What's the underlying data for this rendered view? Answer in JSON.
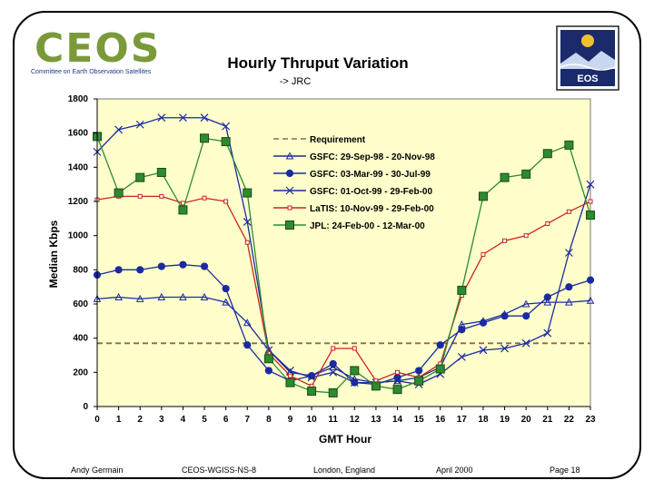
{
  "header": {
    "logo_text": "CEOS",
    "logo_subtitle": "Committee on Earth Observation Satellites",
    "title": "Hourly Thruput Variation",
    "subtitle": "-> JRC",
    "eos_logo_text": "EOS"
  },
  "footer": {
    "author": "Andy Germain",
    "doc": "CEOS-WGISS-NS-8",
    "location": "London, England",
    "date": "April 2000",
    "page": "Page 18"
  },
  "chart_data": {
    "type": "line",
    "xlabel": "GMT Hour",
    "ylabel": "Median Kbps",
    "xlim": [
      0,
      23
    ],
    "ylim": [
      0,
      1800
    ],
    "yticks": [
      0,
      200,
      400,
      600,
      800,
      1000,
      1200,
      1400,
      1600,
      1800
    ],
    "x": [
      0,
      1,
      2,
      3,
      4,
      5,
      6,
      7,
      8,
      9,
      10,
      11,
      12,
      13,
      14,
      15,
      16,
      17,
      18,
      19,
      20,
      21,
      22,
      23
    ],
    "series": [
      {
        "name": "Requirement",
        "color": "#8b6b4b",
        "style": "dashed",
        "marker": "none",
        "values": [
          370,
          370,
          370,
          370,
          370,
          370,
          370,
          370,
          370,
          370,
          370,
          370,
          370,
          370,
          370,
          370,
          370,
          370,
          370,
          370,
          370,
          370,
          370,
          370
        ]
      },
      {
        "name": "GSFC: 29-Sep-98 - 20-Nov-98",
        "color": "#1a2aa0",
        "marker": "triangle",
        "values": [
          630,
          640,
          630,
          640,
          640,
          640,
          610,
          490,
          330,
          200,
          180,
          230,
          160,
          140,
          150,
          170,
          230,
          480,
          500,
          540,
          600,
          610,
          610,
          620
        ]
      },
      {
        "name": "GSFC: 03-Mar-99 - 30-Jul-99",
        "color": "#1a2aa0",
        "marker": "circle",
        "values": [
          770,
          800,
          800,
          820,
          830,
          820,
          690,
          360,
          210,
          150,
          180,
          250,
          140,
          130,
          170,
          210,
          360,
          450,
          490,
          530,
          530,
          640,
          700,
          740
        ]
      },
      {
        "name": "GSFC: 01-Oct-99 - 29-Feb-00",
        "color": "#1a2aa0",
        "marker": "x",
        "values": [
          1490,
          1620,
          1650,
          1690,
          1690,
          1690,
          1640,
          1080,
          330,
          210,
          170,
          200,
          140,
          140,
          150,
          130,
          190,
          290,
          330,
          340,
          370,
          430,
          900,
          1300
        ]
      },
      {
        "name": "LaTIS: 10-Nov-99 - 29-Feb-00",
        "color": "#cc2222",
        "marker": "square-small",
        "values": [
          1210,
          1230,
          1230,
          1230,
          1190,
          1220,
          1200,
          960,
          310,
          180,
          120,
          340,
          340,
          150,
          200,
          170,
          250,
          650,
          890,
          970,
          1000,
          1070,
          1140,
          1200
        ]
      },
      {
        "name": "JPL: 24-Feb-00 - 12-Mar-00",
        "color": "#2e8a2e",
        "marker": "square",
        "values": [
          1580,
          1250,
          1340,
          1370,
          1150,
          1570,
          1550,
          1250,
          280,
          140,
          90,
          80,
          210,
          120,
          100,
          150,
          220,
          680,
          1230,
          1340,
          1360,
          1480,
          1530,
          1120
        ]
      }
    ]
  }
}
